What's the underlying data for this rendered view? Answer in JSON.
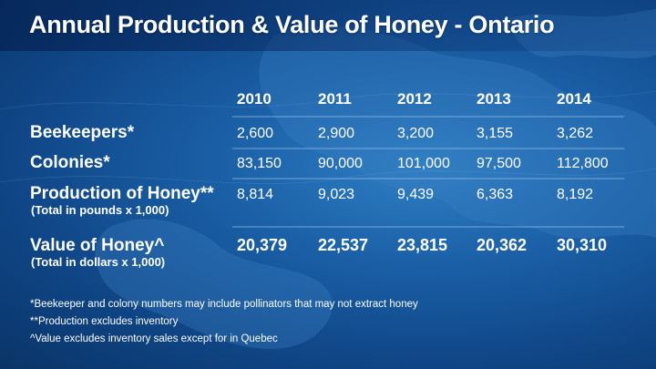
{
  "title": "Annual Production & Value of Honey - Ontario",
  "chart_data": {
    "type": "table",
    "title": "Annual Production & Value of Honey - Ontario",
    "columns": [
      "2010",
      "2011",
      "2012",
      "2013",
      "2014"
    ],
    "rows": [
      {
        "label": "Beekeepers*",
        "sublabel": "",
        "values": [
          "2,600",
          "2,900",
          "3,200",
          "3,155",
          "3,262"
        ],
        "bold": false
      },
      {
        "label": "Colonies*",
        "sublabel": "",
        "values": [
          "83,150",
          "90,000",
          "101,000",
          "97,500",
          "112,800"
        ],
        "bold": false
      },
      {
        "label": "Production of Honey**",
        "sublabel": "(Total in pounds x 1,000)",
        "values": [
          "8,814",
          "9,023",
          "9,439",
          "6,363",
          "8,192"
        ],
        "bold": false
      },
      {
        "label": "Value of Honey^",
        "sublabel": "(Total in dollars x 1,000)",
        "values": [
          "20,379",
          "22,537",
          "23,815",
          "20,362",
          "30,310"
        ],
        "bold": true
      }
    ]
  },
  "footnotes": [
    "*Beekeeper and colony numbers may include pollinators that may not extract honey",
    "**Production excludes inventory",
    "^Value excludes inventory sales except for in Quebec"
  ],
  "colors": {
    "background": "#1a5fa6",
    "background_dark": "#0a3467",
    "land": "#2c6fb3",
    "text": "#ffffff",
    "divider": "#9cc3ea"
  }
}
